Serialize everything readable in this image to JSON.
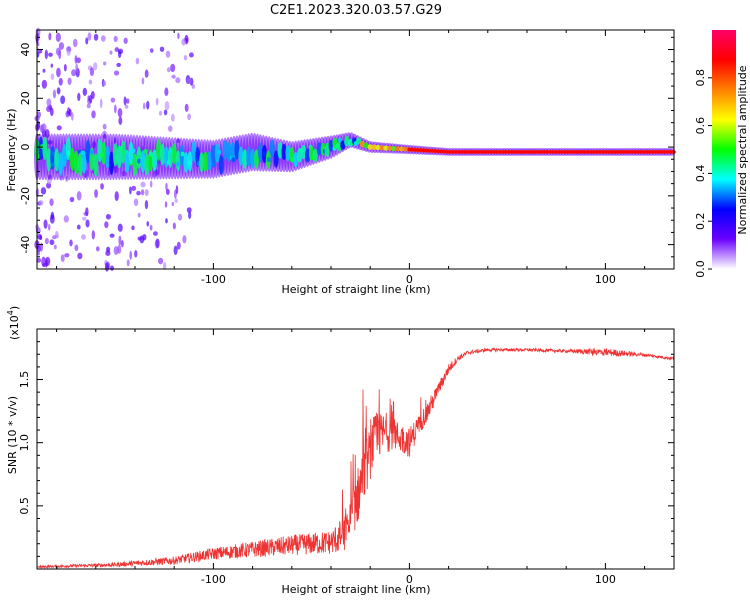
{
  "title": "C2E1.2023.320.03.57.G29",
  "chart_data": [
    {
      "type": "heatmap",
      "xlabel": "Height of straight line (km)",
      "ylabel": "Frequency (Hz)",
      "xlim": [
        -190,
        135
      ],
      "ylim": [
        -50,
        48
      ],
      "x_ticks": [
        -100,
        0,
        100
      ],
      "y_ticks": [
        -40,
        -20,
        0,
        20,
        40
      ],
      "colorbar": {
        "label": "Normalized spectral amplitude",
        "range": [
          0,
          1
        ],
        "ticks": [
          0.0,
          0.2,
          0.4,
          0.6,
          0.8
        ],
        "colors": [
          "#ffffff",
          "#6a00ff",
          "#0000ff",
          "#00ffff",
          "#00ff00",
          "#ffff00",
          "#ff8000",
          "#ff0000",
          "#ff0066"
        ]
      },
      "ridge": {
        "x": [
          -190,
          -150,
          -100,
          -80,
          -60,
          -40,
          -30,
          -20,
          0,
          20,
          80,
          100,
          135
        ],
        "y": [
          -4,
          -4,
          -5,
          -2,
          -4,
          0,
          3,
          0,
          -1,
          -2,
          -2,
          -2,
          -2
        ],
        "spread_hz": [
          6,
          6,
          5,
          5,
          4,
          3,
          2,
          1.5,
          1.2,
          1,
          1,
          1,
          1
        ]
      }
    },
    {
      "type": "line",
      "xlabel": "Height of straight line (km)",
      "ylabel": "SNR (10 * v/v)",
      "ymultiplier": "(x10",
      "ymultiplier_exp": "4",
      "ymultiplier_close": ")",
      "xlim": [
        -190,
        135
      ],
      "ylim": [
        0,
        1.9
      ],
      "x_ticks": [
        -100,
        0,
        100
      ],
      "y_ticks": [
        0.5,
        1.0,
        1.5
      ],
      "color": "#ee3333",
      "envelope": {
        "x": [
          -190,
          -150,
          -120,
          -100,
          -80,
          -60,
          -40,
          -32,
          -25,
          -18,
          -12,
          -6,
          0,
          5,
          10,
          15,
          20,
          25,
          30,
          40,
          60,
          80,
          100,
          120,
          135
        ],
        "y": [
          0.02,
          0.04,
          0.08,
          0.14,
          0.18,
          0.22,
          0.25,
          0.35,
          0.75,
          1.1,
          1.15,
          1.1,
          1.05,
          1.18,
          1.3,
          1.45,
          1.6,
          1.68,
          1.72,
          1.74,
          1.74,
          1.73,
          1.73,
          1.7,
          1.67
        ],
        "noise": [
          0.01,
          0.02,
          0.04,
          0.06,
          0.08,
          0.1,
          0.12,
          0.2,
          0.3,
          0.25,
          0.2,
          0.15,
          0.15,
          0.1,
          0.1,
          0.07,
          0.05,
          0.03,
          0.02,
          0.015,
          0.015,
          0.015,
          0.04,
          0.015,
          0.015
        ]
      }
    }
  ]
}
